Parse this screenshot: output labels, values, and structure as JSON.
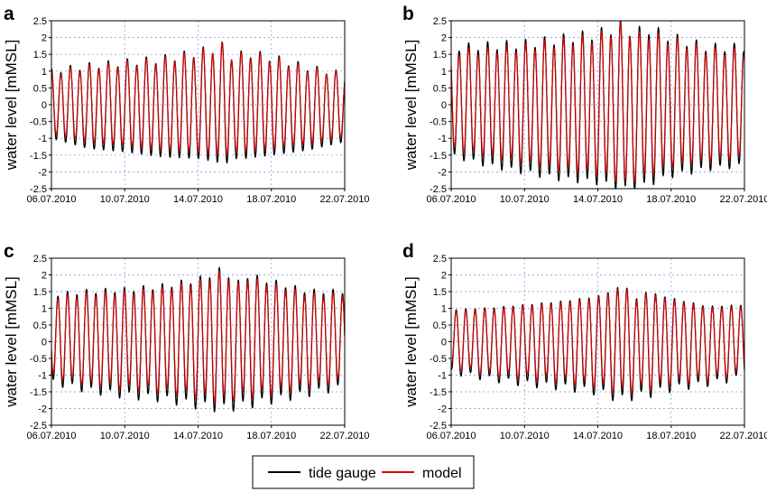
{
  "chart_data": [
    {
      "panel": "a",
      "type": "line",
      "ylabel": "water level [mMSL]",
      "ylim": [
        -2.5,
        2.5
      ],
      "yticks": [
        "2.5",
        "2",
        "1.5",
        "1",
        "0.5",
        "0",
        "-0.5",
        "-1",
        "-1.5",
        "-2",
        "-2.5"
      ],
      "xlim": [
        "06.07.2010",
        "22.07.2010"
      ],
      "xticks": [
        "06.07.2010",
        "10.07.2010",
        "14.07.2010",
        "18.07.2010",
        "22.07.2010"
      ],
      "grid": true,
      "envelope_days": [
        6,
        8,
        10,
        12,
        14,
        15.5,
        16,
        16.5,
        18,
        20,
        22
      ],
      "series": [
        {
          "name": "tide gauge",
          "color": "#000000",
          "high": [
            1.0,
            1.15,
            1.25,
            1.35,
            1.55,
            1.75,
            1.3,
            1.55,
            1.4,
            1.1,
            0.9
          ],
          "low": [
            -1.0,
            -1.3,
            -1.4,
            -1.55,
            -1.6,
            -1.75,
            -1.6,
            -1.6,
            -1.5,
            -1.35,
            -1.1
          ]
        },
        {
          "name": "model",
          "color": "#e00000",
          "high": [
            0.95,
            1.1,
            1.2,
            1.3,
            1.5,
            1.75,
            1.3,
            1.5,
            1.35,
            1.05,
            0.9
          ],
          "low": [
            -0.85,
            -1.1,
            -1.2,
            -1.35,
            -1.4,
            -1.5,
            -1.4,
            -1.4,
            -1.3,
            -1.15,
            -0.95
          ]
        }
      ]
    },
    {
      "panel": "b",
      "type": "line",
      "ylabel": "water level [mMSL]",
      "ylim": [
        -2.5,
        2.5
      ],
      "yticks": [
        "2.5",
        "2",
        "1.5",
        "1",
        "0.5",
        "0",
        "-0.5",
        "-1",
        "-1.5",
        "-2",
        "-2.5"
      ],
      "xlim": [
        "06.07.2010",
        "22.07.2010"
      ],
      "xticks": [
        "06.07.2010",
        "10.07.2010",
        "14.07.2010",
        "18.07.2010",
        "22.07.2010"
      ],
      "grid": true,
      "envelope_days": [
        6,
        8,
        10,
        12,
        14,
        15.5,
        16,
        16.5,
        18,
        20,
        22
      ],
      "series": [
        {
          "name": "tide gauge",
          "color": "#000000",
          "high": [
            1.7,
            1.75,
            1.8,
            1.95,
            2.1,
            2.4,
            2.0,
            2.3,
            2.0,
            1.7,
            1.7
          ],
          "low": [
            -1.5,
            -1.8,
            -2.0,
            -2.2,
            -2.3,
            -2.5,
            -2.45,
            -2.4,
            -2.1,
            -1.9,
            -1.8
          ]
        },
        {
          "name": "model",
          "color": "#e00000",
          "high": [
            1.55,
            1.6,
            1.7,
            1.85,
            2.0,
            2.35,
            1.95,
            2.1,
            1.9,
            1.6,
            1.55
          ],
          "low": [
            -1.3,
            -1.5,
            -1.7,
            -1.9,
            -2.0,
            -2.3,
            -2.2,
            -2.1,
            -1.8,
            -1.65,
            -1.55
          ]
        }
      ]
    },
    {
      "panel": "c",
      "type": "line",
      "ylabel": "water level [mMSL]",
      "ylim": [
        -2.5,
        2.5
      ],
      "yticks": [
        "2.5",
        "2",
        "1.5",
        "1",
        "0.5",
        "0",
        "-0.5",
        "-1",
        "-1.5",
        "-2",
        "-2.5"
      ],
      "xlim": [
        "06.07.2010",
        "22.07.2010"
      ],
      "xticks": [
        "06.07.2010",
        "10.07.2010",
        "14.07.2010",
        "18.07.2010",
        "22.07.2010"
      ],
      "grid": true,
      "envelope_days": [
        6,
        8,
        10,
        12,
        14,
        15.5,
        16,
        16.5,
        18,
        20,
        22
      ],
      "series": [
        {
          "name": "tide gauge",
          "color": "#000000",
          "high": [
            1.4,
            1.5,
            1.55,
            1.65,
            1.85,
            2.2,
            1.6,
            2.0,
            1.8,
            1.5,
            1.5
          ],
          "low": [
            -1.2,
            -1.45,
            -1.6,
            -1.7,
            -1.9,
            -2.0,
            -1.95,
            -1.9,
            -1.75,
            -1.55,
            -1.35
          ]
        },
        {
          "name": "model",
          "color": "#e00000",
          "high": [
            1.3,
            1.4,
            1.45,
            1.55,
            1.75,
            2.1,
            1.55,
            1.9,
            1.7,
            1.4,
            1.4
          ],
          "low": [
            -1.0,
            -1.25,
            -1.35,
            -1.45,
            -1.6,
            -1.75,
            -1.65,
            -1.6,
            -1.5,
            -1.3,
            -1.15
          ]
        }
      ]
    },
    {
      "panel": "d",
      "type": "line",
      "ylabel": "water level [mMSL]",
      "ylim": [
        -2.5,
        2.5
      ],
      "yticks": [
        "2.5",
        "2",
        "1.5",
        "1",
        "0.5",
        "0",
        "-0.5",
        "-1",
        "-1.5",
        "-2",
        "-2.5"
      ],
      "xlim": [
        "06.07.2010",
        "22.07.2010"
      ],
      "xticks": [
        "06.07.2010",
        "10.07.2010",
        "14.07.2010",
        "18.07.2010",
        "22.07.2010"
      ],
      "grid": true,
      "envelope_days": [
        6,
        8,
        10,
        12,
        14,
        15.5,
        16,
        16.5,
        18,
        20,
        22
      ],
      "series": [
        {
          "name": "tide gauge",
          "color": "#000000",
          "high": [
            0.95,
            1.0,
            1.1,
            1.2,
            1.35,
            1.7,
            1.2,
            1.5,
            1.3,
            1.05,
            1.1
          ],
          "low": [
            -0.9,
            -1.1,
            -1.25,
            -1.35,
            -1.5,
            -1.75,
            -1.6,
            -1.6,
            -1.4,
            -1.25,
            -1.05
          ]
        },
        {
          "name": "model",
          "color": "#e00000",
          "high": [
            0.9,
            0.95,
            1.05,
            1.15,
            1.3,
            1.65,
            1.15,
            1.45,
            1.25,
            1.0,
            1.05
          ],
          "low": [
            -0.75,
            -0.95,
            -1.05,
            -1.15,
            -1.3,
            -1.5,
            -1.4,
            -1.4,
            -1.2,
            -1.1,
            -0.9
          ]
        }
      ]
    }
  ],
  "legend": {
    "position": "bottom-center",
    "items": [
      {
        "label": "tide gauge",
        "color": "#000000"
      },
      {
        "label": "model",
        "color": "#e00000"
      }
    ]
  }
}
